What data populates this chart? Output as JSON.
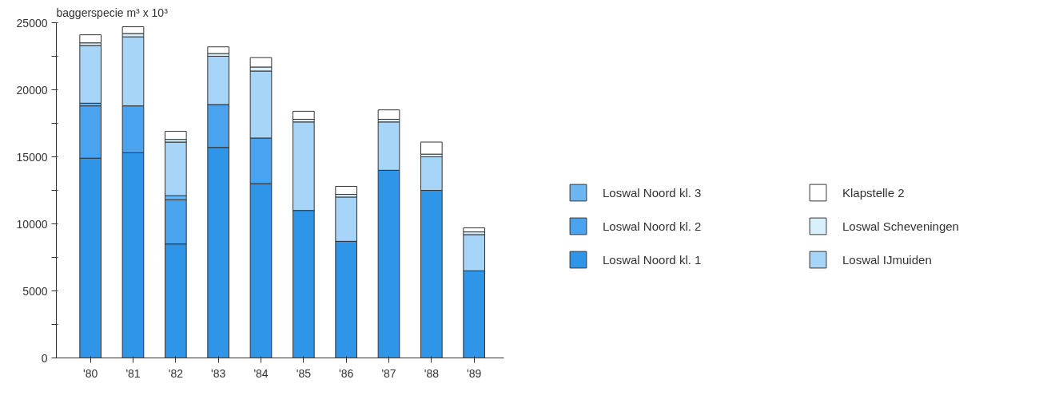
{
  "chart_data": {
    "type": "bar",
    "stacked": true,
    "ylabel": "baggerspecie m³ x 10³",
    "categories": [
      "'80",
      "'81",
      "'82",
      "'83",
      "'84",
      "'85",
      "'86",
      "'87",
      "'88",
      "'89"
    ],
    "series": [
      {
        "name": "Loswal Noord kl. 1",
        "color": "#2f95e8",
        "values": [
          14900,
          15300,
          8500,
          15700,
          13000,
          11000,
          8700,
          14000,
          12500,
          6500
        ]
      },
      {
        "name": "Loswal Noord kl. 2",
        "color": "#4aa3ee",
        "values": [
          3900,
          3500,
          3300,
          3200,
          3400,
          0,
          0,
          0,
          0,
          0
        ]
      },
      {
        "name": "Loswal Noord kl. 3",
        "color": "#6bb5f0",
        "values": [
          200,
          0,
          300,
          0,
          0,
          0,
          0,
          0,
          0,
          0
        ]
      },
      {
        "name": "Loswal IJmuiden",
        "color": "#a6d5f7",
        "values": [
          4300,
          5150,
          4000,
          3600,
          5000,
          6600,
          3300,
          3600,
          2500,
          2700
        ]
      },
      {
        "name": "Loswal Scheveningen",
        "color": "#d8f0fb",
        "values": [
          200,
          250,
          200,
          200,
          300,
          200,
          200,
          200,
          200,
          200
        ]
      },
      {
        "name": "Klapstelle 2",
        "color": "#ffffff",
        "values": [
          600,
          500,
          600,
          500,
          700,
          600,
          600,
          700,
          900,
          300
        ]
      }
    ],
    "ylim": [
      0,
      25000
    ],
    "yticks": [
      0,
      {
        "value": 2500,
        "label": null
      },
      5000,
      {
        "value": 7500,
        "label": null
      },
      10000,
      {
        "value": 12500,
        "label": null
      },
      15000,
      {
        "value": 17500,
        "label": null
      },
      20000,
      {
        "value": 22500,
        "label": null
      },
      25000
    ],
    "grid": false,
    "legend": "right"
  }
}
